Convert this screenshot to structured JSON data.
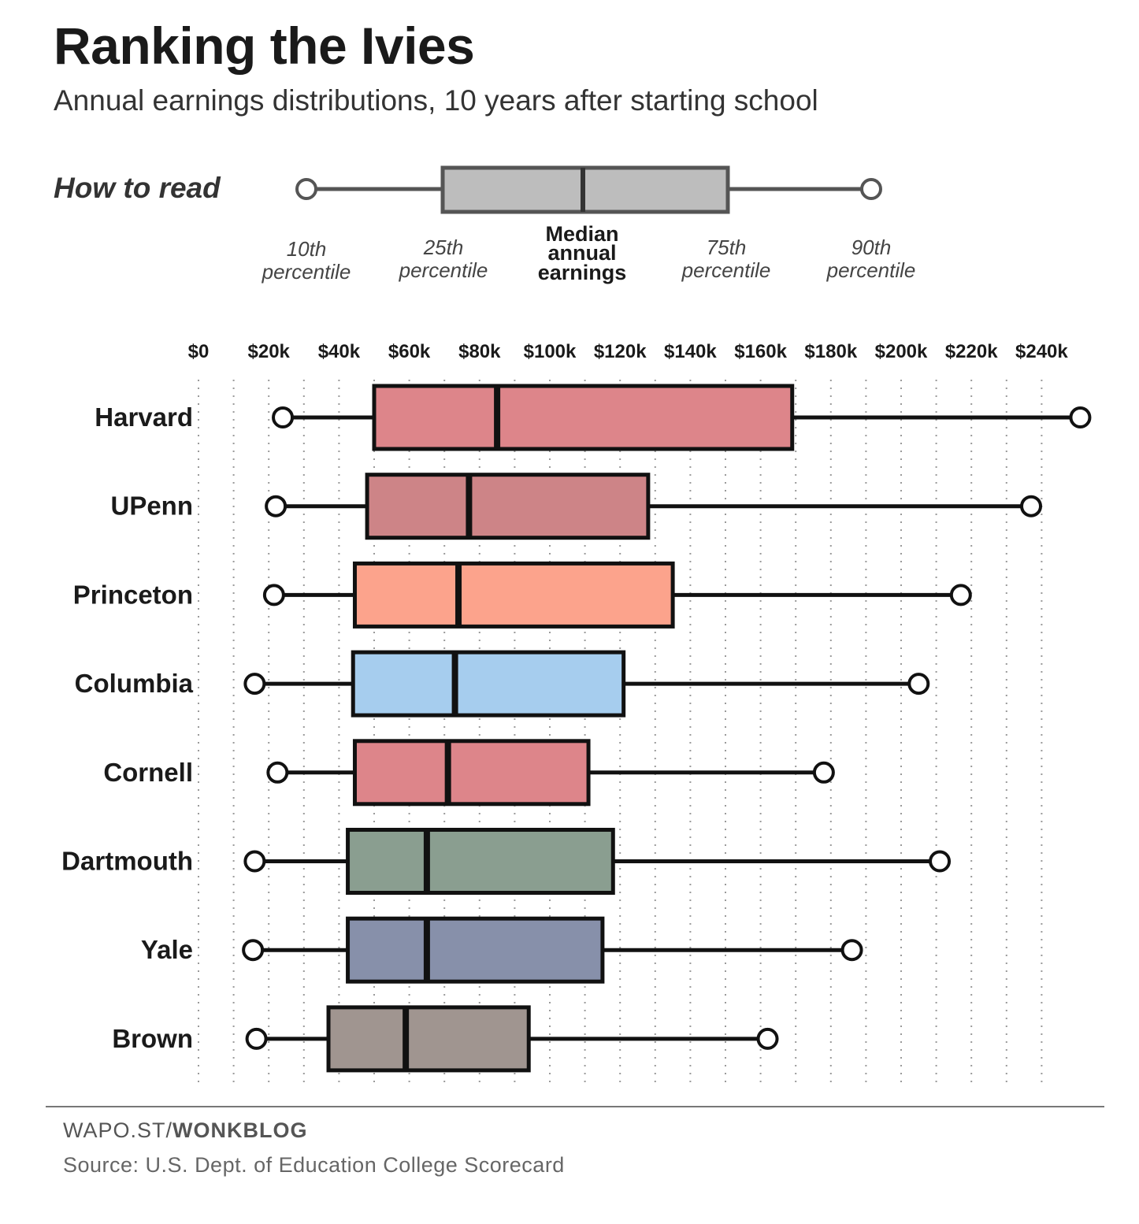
{
  "header": {
    "title": "Ranking the Ivies",
    "subtitle": "Annual earnings distributions, 10 years after starting school"
  },
  "legend": {
    "label": "How to read",
    "p10": [
      "10th",
      "percentile"
    ],
    "p25": [
      "25th",
      "percentile"
    ],
    "median": [
      "Median",
      "annual",
      "earnings"
    ],
    "p75": [
      "75th",
      "percentile"
    ],
    "p90": [
      "90th",
      "percentile"
    ],
    "fill_color": "#bdbdbd",
    "stroke_color": "#555555"
  },
  "footer": {
    "brand_prefix": "WAPO.ST/",
    "brand_bold": "WONKBLOG",
    "source": "Source: U.S. Dept. of Education College Scorecard"
  },
  "chart_data": {
    "type": "boxplot",
    "title": "Ranking the Ivies",
    "subtitle": "Annual earnings distributions, 10 years after starting school",
    "x_ticks": [
      0,
      20000,
      40000,
      60000,
      80000,
      100000,
      120000,
      140000,
      160000,
      180000,
      200000,
      220000,
      240000
    ],
    "x_tick_labels": [
      "$0",
      "$20k",
      "$40k",
      "$60k",
      "$80k",
      "$100k",
      "$120k",
      "$140k",
      "$160k",
      "$180k",
      "$200k",
      "$220k",
      "$240k"
    ],
    "xlim": [
      0,
      250000
    ],
    "grid": "vertical dotted",
    "series": [
      {
        "name": "Harvard",
        "p10": 24000,
        "p25": 50000,
        "median": 85000,
        "p75": 169000,
        "p90": 251000,
        "color": "#dd858a"
      },
      {
        "name": "UPenn",
        "p10": 22000,
        "p25": 48000,
        "median": 77000,
        "p75": 128000,
        "p90": 237000,
        "color": "#cd8487"
      },
      {
        "name": "Princeton",
        "p10": 21500,
        "p25": 44500,
        "median": 74000,
        "p75": 135000,
        "p90": 217000,
        "color": "#fca38c"
      },
      {
        "name": "Columbia",
        "p10": 16000,
        "p25": 44000,
        "median": 73000,
        "p75": 121000,
        "p90": 205000,
        "color": "#a6cdee"
      },
      {
        "name": "Cornell",
        "p10": 22500,
        "p25": 44500,
        "median": 71000,
        "p75": 111000,
        "p90": 178000,
        "color": "#dd858a"
      },
      {
        "name": "Dartmouth",
        "p10": 16000,
        "p25": 42500,
        "median": 65000,
        "p75": 118000,
        "p90": 211000,
        "color": "#8a9e90"
      },
      {
        "name": "Yale",
        "p10": 15500,
        "p25": 42500,
        "median": 65000,
        "p75": 115000,
        "p90": 186000,
        "color": "#8790aa"
      },
      {
        "name": "Brown",
        "p10": 16500,
        "p25": 37000,
        "median": 59000,
        "p75": 94000,
        "p90": 162000,
        "color": "#a09590"
      }
    ]
  }
}
